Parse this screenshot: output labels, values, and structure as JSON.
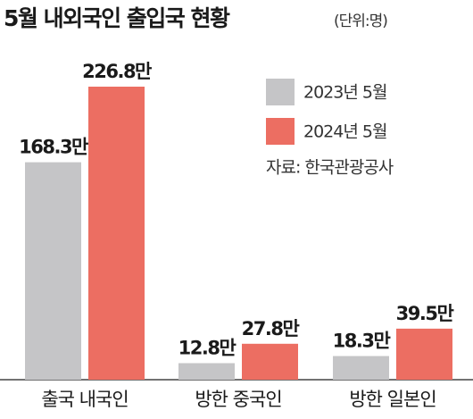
{
  "chart_data": {
    "type": "bar",
    "title": "5월 내외국인 출입국 현황",
    "subtitle": "(단위:명)",
    "source": "자료: 한국관광공사",
    "categories": [
      "출국 내국인",
      "방한 중국인",
      "방한 일본인"
    ],
    "series": [
      {
        "name": "2023년 5월",
        "color": "#c5c5c7",
        "values": [
          168.3,
          12.8,
          18.3
        ],
        "value_labels": [
          "168.3만",
          "12.8만",
          "18.3만"
        ]
      },
      {
        "name": "2024년 5월",
        "color": "#ec6e62",
        "values": [
          226.8,
          27.8,
          39.5
        ],
        "value_labels": [
          "226.8만",
          "27.8만",
          "39.5만"
        ]
      }
    ]
  }
}
